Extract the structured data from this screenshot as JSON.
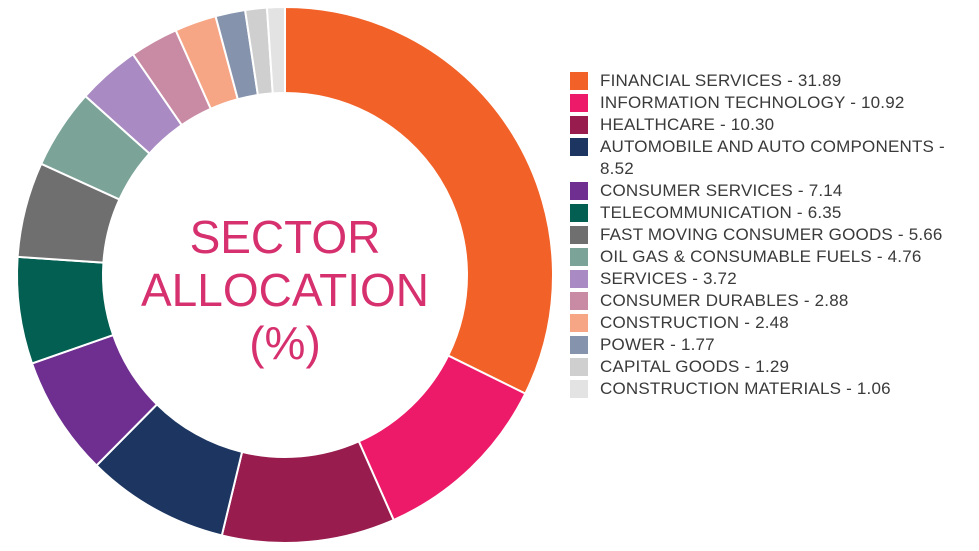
{
  "chart_data": {
    "type": "pie",
    "title": "SECTOR ALLOCATION (%)",
    "title_lines": [
      "SECTOR",
      "ALLOCATION",
      "(%)"
    ],
    "donut": true,
    "legend_position": "right",
    "slices": [
      {
        "label": "FINANCIAL SERVICES",
        "value": 31.89,
        "value_text": "31.89",
        "color": "#f26127"
      },
      {
        "label": "INFORMATION TECHNOLOGY",
        "value": 10.92,
        "value_text": "10.92",
        "color": "#ec1a68"
      },
      {
        "label": "HEALTHCARE",
        "value": 10.3,
        "value_text": "10.30",
        "color": "#981c4d"
      },
      {
        "label": "AUTOMOBILE AND AUTO COMPONENTS",
        "value": 8.52,
        "value_text": "8.52",
        "color": "#1c3561"
      },
      {
        "label": "CONSUMER SERVICES",
        "value": 7.14,
        "value_text": "7.14",
        "color": "#6e2f91"
      },
      {
        "label": "TELECOMMUNICATION",
        "value": 6.35,
        "value_text": "6.35",
        "color": "#035f52"
      },
      {
        "label": "FAST MOVING CONSUMER GOODS",
        "value": 5.66,
        "value_text": "5.66",
        "color": "#6f6f6f"
      },
      {
        "label": "OIL GAS & CONSUMABLE FUELS",
        "value": 4.76,
        "value_text": "4.76",
        "color": "#7ba397"
      },
      {
        "label": "SERVICES",
        "value": 3.72,
        "value_text": "3.72",
        "color": "#a98ac2"
      },
      {
        "label": "CONSUMER DURABLES",
        "value": 2.88,
        "value_text": "2.88",
        "color": "#c98aa3"
      },
      {
        "label": "CONSTRUCTION",
        "value": 2.48,
        "value_text": "2.48",
        "color": "#f6a585"
      },
      {
        "label": "POWER",
        "value": 1.77,
        "value_text": "1.77",
        "color": "#8593ad"
      },
      {
        "label": "CAPITAL GOODS",
        "value": 1.29,
        "value_text": "1.29",
        "color": "#cfcfcf"
      },
      {
        "label": "CONSTRUCTION MATERIALS",
        "value": 1.06,
        "value_text": "1.06",
        "color": "#e3e3e3"
      }
    ]
  }
}
